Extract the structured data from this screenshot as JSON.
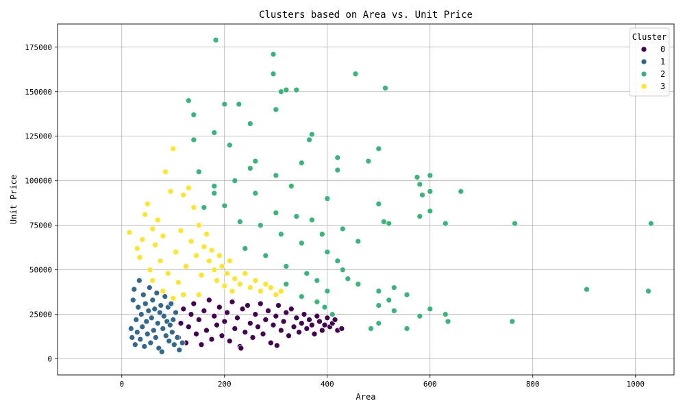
{
  "chart_data": {
    "type": "scatter",
    "title": "Clusters based on Area vs. Unit Price",
    "xlabel": "Area",
    "ylabel": "Unit Price",
    "xlim": [
      -125,
      1075
    ],
    "ylim": [
      -9000,
      188000
    ],
    "x_ticks": [
      0,
      200,
      400,
      600,
      800,
      1000
    ],
    "y_ticks": [
      0,
      25000,
      50000,
      75000,
      100000,
      125000,
      150000,
      175000
    ],
    "grid": true,
    "legend": {
      "title": "Cluster",
      "placement": "top-right"
    },
    "series": [
      {
        "name": "0",
        "color": "#440154",
        "points": [
          [
            110,
            12000
          ],
          [
            115,
            20000
          ],
          [
            120,
            28000
          ],
          [
            125,
            9000
          ],
          [
            130,
            18000
          ],
          [
            135,
            25000
          ],
          [
            140,
            31000
          ],
          [
            145,
            14000
          ],
          [
            150,
            22000
          ],
          [
            155,
            8000
          ],
          [
            160,
            27000
          ],
          [
            165,
            16000
          ],
          [
            170,
            33000
          ],
          [
            175,
            11000
          ],
          [
            180,
            24000
          ],
          [
            185,
            19000
          ],
          [
            190,
            29000
          ],
          [
            195,
            13000
          ],
          [
            200,
            21000
          ],
          [
            205,
            26000
          ],
          [
            210,
            10000
          ],
          [
            215,
            32000
          ],
          [
            220,
            17000
          ],
          [
            225,
            23000
          ],
          [
            230,
            7000
          ],
          [
            235,
            28000
          ],
          [
            240,
            15000
          ],
          [
            245,
            30000
          ],
          [
            250,
            20000
          ],
          [
            255,
            12000
          ],
          [
            260,
            25000
          ],
          [
            265,
            18000
          ],
          [
            270,
            31000
          ],
          [
            275,
            14000
          ],
          [
            280,
            22000
          ],
          [
            285,
            27000
          ],
          [
            290,
            9000
          ],
          [
            295,
            19000
          ],
          [
            300,
            24000
          ],
          [
            305,
            30000
          ],
          [
            310,
            16000
          ],
          [
            315,
            21000
          ],
          [
            320,
            26000
          ],
          [
            325,
            13000
          ],
          [
            330,
            28000
          ],
          [
            335,
            18000
          ],
          [
            340,
            23000
          ],
          [
            345,
            15000
          ],
          [
            350,
            20000
          ],
          [
            355,
            25000
          ],
          [
            360,
            17000
          ],
          [
            365,
            22000
          ],
          [
            370,
            19000
          ],
          [
            375,
            14000
          ],
          [
            380,
            24000
          ],
          [
            385,
            21000
          ],
          [
            390,
            16000
          ],
          [
            395,
            19000
          ],
          [
            400,
            23000
          ],
          [
            405,
            18000
          ],
          [
            410,
            20000
          ],
          [
            415,
            22000
          ],
          [
            420,
            16000
          ],
          [
            428,
            17000
          ],
          [
            302,
            7500
          ],
          [
            232,
            6000
          ]
        ]
      },
      {
        "name": "1",
        "color": "#31688e",
        "points": [
          [
            18,
            17000
          ],
          [
            20,
            12000
          ],
          [
            22,
            33000
          ],
          [
            24,
            39000
          ],
          [
            26,
            8000
          ],
          [
            28,
            22000
          ],
          [
            30,
            15000
          ],
          [
            32,
            29000
          ],
          [
            34,
            44000
          ],
          [
            36,
            11000
          ],
          [
            38,
            25000
          ],
          [
            40,
            18000
          ],
          [
            42,
            36000
          ],
          [
            44,
            7000
          ],
          [
            46,
            31000
          ],
          [
            48,
            21000
          ],
          [
            50,
            14000
          ],
          [
            52,
            27000
          ],
          [
            54,
            40000
          ],
          [
            56,
            9000
          ],
          [
            58,
            23000
          ],
          [
            60,
            33000
          ],
          [
            62,
            16000
          ],
          [
            64,
            28000
          ],
          [
            66,
            12000
          ],
          [
            68,
            37000
          ],
          [
            70,
            20000
          ],
          [
            72,
            6000
          ],
          [
            74,
            26000
          ],
          [
            76,
            30000
          ],
          [
            78,
            4000
          ],
          [
            80,
            17000
          ],
          [
            82,
            24000
          ],
          [
            84,
            35000
          ],
          [
            86,
            13000
          ],
          [
            88,
            21000
          ],
          [
            90,
            29000
          ],
          [
            92,
            10000
          ],
          [
            94,
            19000
          ],
          [
            96,
            31000
          ],
          [
            98,
            15000
          ],
          [
            100,
            22000
          ],
          [
            102,
            8000
          ],
          [
            105,
            26000
          ],
          [
            108,
            12000
          ],
          [
            112,
            5000
          ],
          [
            118,
            9000
          ]
        ]
      },
      {
        "name": "2",
        "color": "#35b779",
        "points": [
          [
            183,
            179000
          ],
          [
            295,
            171000
          ],
          [
            295,
            160000
          ],
          [
            455,
            160000
          ],
          [
            513,
            152000
          ],
          [
            130,
            145000
          ],
          [
            228,
            143000
          ],
          [
            200,
            143000
          ],
          [
            310,
            150000
          ],
          [
            320,
            151000
          ],
          [
            340,
            151000
          ],
          [
            140,
            137000
          ],
          [
            300,
            140000
          ],
          [
            250,
            132000
          ],
          [
            180,
            127000
          ],
          [
            140,
            123000
          ],
          [
            370,
            126000
          ],
          [
            365,
            123000
          ],
          [
            500,
            118000
          ],
          [
            210,
            120000
          ],
          [
            420,
            113000
          ],
          [
            480,
            111000
          ],
          [
            150,
            105000
          ],
          [
            250,
            107000
          ],
          [
            300,
            103000
          ],
          [
            420,
            106000
          ],
          [
            350,
            110000
          ],
          [
            575,
            102000
          ],
          [
            580,
            98000
          ],
          [
            600,
            103000
          ],
          [
            600,
            94000
          ],
          [
            585,
            92000
          ],
          [
            660,
            94000
          ],
          [
            180,
            97000
          ],
          [
            260,
            93000
          ],
          [
            400,
            90000
          ],
          [
            500,
            87000
          ],
          [
            520,
            76000
          ],
          [
            510,
            77000
          ],
          [
            600,
            83000
          ],
          [
            580,
            80000
          ],
          [
            630,
            76000
          ],
          [
            765,
            76000
          ],
          [
            1030,
            76000
          ],
          [
            200,
            86000
          ],
          [
            300,
            82000
          ],
          [
            340,
            80000
          ],
          [
            390,
            70000
          ],
          [
            430,
            73000
          ],
          [
            460,
            66000
          ],
          [
            160,
            85000
          ],
          [
            230,
            77000
          ],
          [
            270,
            75000
          ],
          [
            310,
            70000
          ],
          [
            350,
            65000
          ],
          [
            400,
            60000
          ],
          [
            420,
            55000
          ],
          [
            440,
            45000
          ],
          [
            430,
            50000
          ],
          [
            460,
            42000
          ],
          [
            500,
            38000
          ],
          [
            530,
            40000
          ],
          [
            555,
            36000
          ],
          [
            500,
            30000
          ],
          [
            520,
            33000
          ],
          [
            530,
            27000
          ],
          [
            580,
            24000
          ],
          [
            600,
            28000
          ],
          [
            630,
            25000
          ],
          [
            635,
            21000
          ],
          [
            760,
            21000
          ],
          [
            905,
            39000
          ],
          [
            1025,
            38000
          ],
          [
            485,
            17000
          ],
          [
            500,
            20000
          ],
          [
            555,
            17000
          ],
          [
            240,
            62000
          ],
          [
            280,
            58000
          ],
          [
            320,
            52000
          ],
          [
            360,
            48000
          ],
          [
            380,
            44000
          ],
          [
            400,
            38000
          ],
          [
            320,
            42000
          ],
          [
            380,
            32000
          ],
          [
            350,
            35000
          ],
          [
            395,
            29000
          ],
          [
            410,
            25000
          ],
          [
            180,
            93000
          ],
          [
            220,
            100000
          ],
          [
            260,
            111000
          ],
          [
            330,
            97000
          ],
          [
            370,
            78000
          ]
        ]
      },
      {
        "name": "3",
        "color": "#fde725",
        "points": [
          [
            15,
            71000
          ],
          [
            30,
            62000
          ],
          [
            35,
            57000
          ],
          [
            40,
            67000
          ],
          [
            45,
            81000
          ],
          [
            50,
            87000
          ],
          [
            55,
            50000
          ],
          [
            60,
            73000
          ],
          [
            65,
            64000
          ],
          [
            70,
            78000
          ],
          [
            75,
            55000
          ],
          [
            80,
            69000
          ],
          [
            85,
            105000
          ],
          [
            90,
            48000
          ],
          [
            95,
            94000
          ],
          [
            100,
            118000
          ],
          [
            105,
            60000
          ],
          [
            110,
            43000
          ],
          [
            115,
            72000
          ],
          [
            120,
            92000
          ],
          [
            125,
            52000
          ],
          [
            130,
            96000
          ],
          [
            135,
            66000
          ],
          [
            140,
            85000
          ],
          [
            145,
            58000
          ],
          [
            150,
            75000
          ],
          [
            155,
            47000
          ],
          [
            160,
            63000
          ],
          [
            165,
            70000
          ],
          [
            170,
            55000
          ],
          [
            175,
            61000
          ],
          [
            180,
            50000
          ],
          [
            185,
            44000
          ],
          [
            190,
            58000
          ],
          [
            195,
            52000
          ],
          [
            200,
            41000
          ],
          [
            205,
            48000
          ],
          [
            210,
            55000
          ],
          [
            215,
            38000
          ],
          [
            220,
            45000
          ],
          [
            230,
            42000
          ],
          [
            240,
            48000
          ],
          [
            250,
            40000
          ],
          [
            260,
            44000
          ],
          [
            270,
            38000
          ],
          [
            280,
            42000
          ],
          [
            290,
            40000
          ],
          [
            300,
            36000
          ],
          [
            310,
            38000
          ],
          [
            100,
            34000
          ],
          [
            60,
            44000
          ],
          [
            80,
            38000
          ],
          [
            120,
            36000
          ],
          [
            150,
            36000
          ]
        ]
      }
    ]
  }
}
